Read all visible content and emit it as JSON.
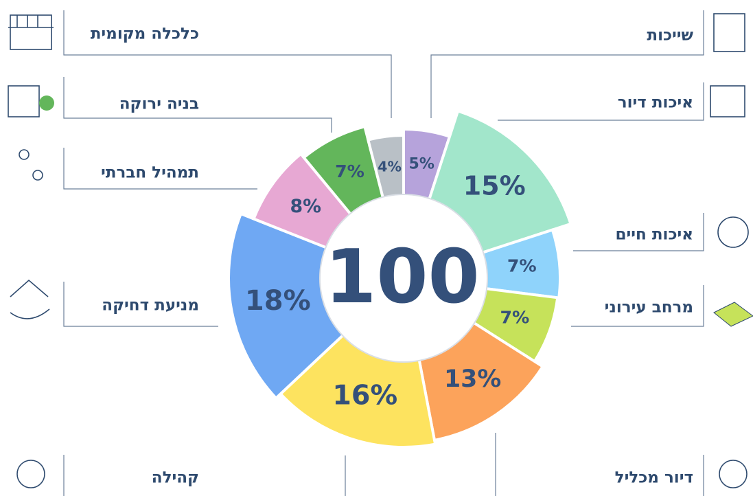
{
  "chart_data": {
    "type": "donut",
    "center_label": "100",
    "categories": [
      "שייכות",
      "איכות דיור",
      "איכות חיים",
      "מרחב עירוני",
      "דיור מכליל",
      "קהילה",
      "מניעת דחיקה",
      "תמהיל חברתי",
      "בניה ירוקה",
      "כלכלה מקומית"
    ],
    "values": [
      5,
      15,
      7,
      7,
      13,
      16,
      18,
      8,
      7,
      4
    ],
    "value_labels": [
      "5%",
      "15%",
      "7%",
      "7%",
      "13%",
      "16%",
      "18%",
      "8%",
      "7%",
      "4%"
    ],
    "colors": [
      "#b6a3db",
      "#a2e6cb",
      "#8fd3fb",
      "#c6e25a",
      "#fca35b",
      "#fde35f",
      "#6fa8f3",
      "#e7a8d3",
      "#63b65b",
      "#b9c0c6"
    ]
  }
}
